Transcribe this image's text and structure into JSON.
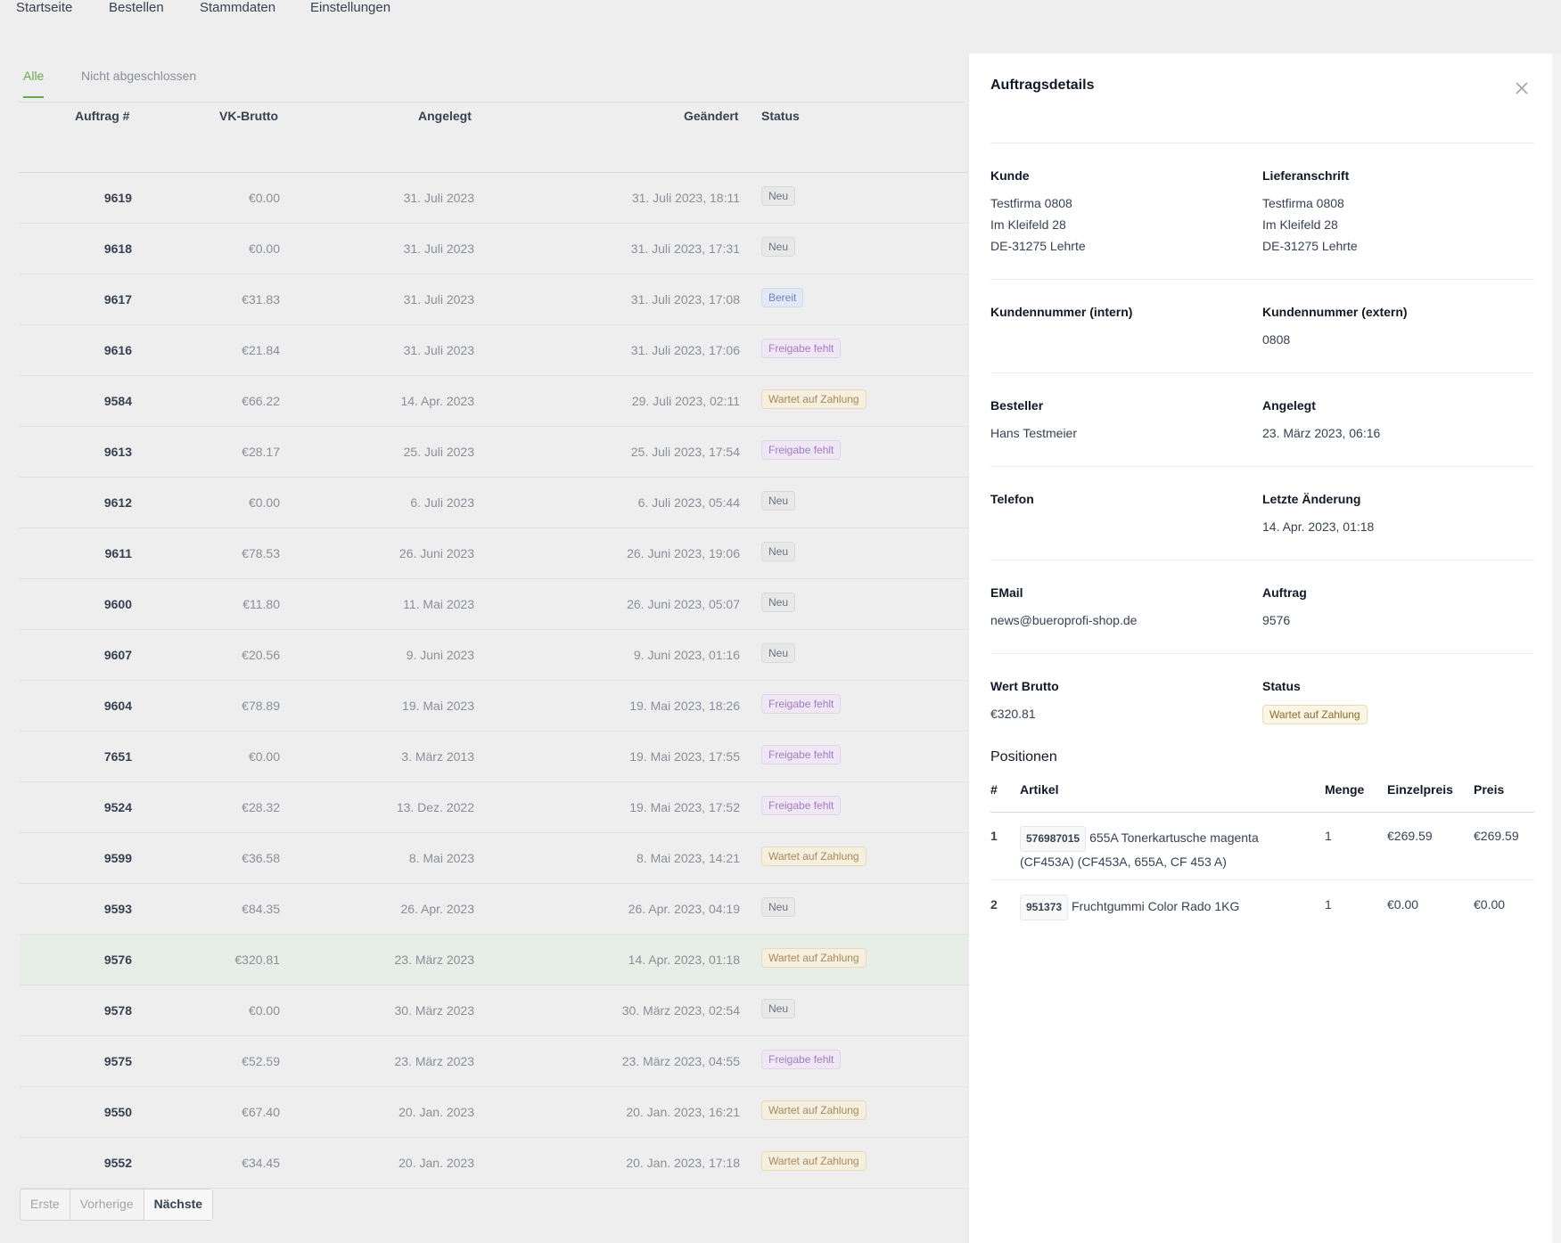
{
  "topnav": {
    "items": [
      "Startseite",
      "Bestellen",
      "Stammdaten",
      "Einstellungen"
    ]
  },
  "tabs": [
    {
      "label": "Alle",
      "active": true
    },
    {
      "label": "Nicht abgeschlossen",
      "active": false
    }
  ],
  "table": {
    "headers": {
      "id": "Auftrag #",
      "vk": "VK-Brutto",
      "created": "Angelegt",
      "changed": "Geändert",
      "status": "Status"
    },
    "rows": [
      {
        "id": "9619",
        "vk": "€0.00",
        "created": "31. Juli 2023",
        "changed": "31. Juli 2023, 18:11",
        "status": "Neu",
        "type": "neu"
      },
      {
        "id": "9618",
        "vk": "€0.00",
        "created": "31. Juli 2023",
        "changed": "31. Juli 2023, 17:31",
        "status": "Neu",
        "type": "neu"
      },
      {
        "id": "9617",
        "vk": "€31.83",
        "created": "31. Juli 2023",
        "changed": "31. Juli 2023, 17:08",
        "status": "Bereit",
        "type": "bereit"
      },
      {
        "id": "9616",
        "vk": "€21.84",
        "created": "31. Juli 2023",
        "changed": "31. Juli 2023, 17:06",
        "status": "Freigabe fehlt",
        "type": "freigabe"
      },
      {
        "id": "9584",
        "vk": "€66.22",
        "created": "14. Apr. 2023",
        "changed": "29. Juli 2023, 02:11",
        "status": "Wartet auf Zahlung",
        "type": "wartet"
      },
      {
        "id": "9613",
        "vk": "€28.17",
        "created": "25. Juli 2023",
        "changed": "25. Juli 2023, 17:54",
        "status": "Freigabe fehlt",
        "type": "freigabe"
      },
      {
        "id": "9612",
        "vk": "€0.00",
        "created": "6. Juli 2023",
        "changed": "6. Juli 2023, 05:44",
        "status": "Neu",
        "type": "neu"
      },
      {
        "id": "9611",
        "vk": "€78.53",
        "created": "26. Juni 2023",
        "changed": "26. Juni 2023, 19:06",
        "status": "Neu",
        "type": "neu"
      },
      {
        "id": "9600",
        "vk": "€11.80",
        "created": "11. Mai 2023",
        "changed": "26. Juni 2023, 05:07",
        "status": "Neu",
        "type": "neu"
      },
      {
        "id": "9607",
        "vk": "€20.56",
        "created": "9. Juni 2023",
        "changed": "9. Juni 2023, 01:16",
        "status": "Neu",
        "type": "neu"
      },
      {
        "id": "9604",
        "vk": "€78.89",
        "created": "19. Mai 2023",
        "changed": "19. Mai 2023, 18:26",
        "status": "Freigabe fehlt",
        "type": "freigabe"
      },
      {
        "id": "7651",
        "vk": "€0.00",
        "created": "3. März 2013",
        "changed": "19. Mai 2023, 17:55",
        "status": "Freigabe fehlt",
        "type": "freigabe"
      },
      {
        "id": "9524",
        "vk": "€28.32",
        "created": "13. Dez. 2022",
        "changed": "19. Mai 2023, 17:52",
        "status": "Freigabe fehlt",
        "type": "freigabe"
      },
      {
        "id": "9599",
        "vk": "€36.58",
        "created": "8. Mai 2023",
        "changed": "8. Mai 2023, 14:21",
        "status": "Wartet auf Zahlung",
        "type": "wartet"
      },
      {
        "id": "9593",
        "vk": "€84.35",
        "created": "26. Apr. 2023",
        "changed": "26. Apr. 2023, 04:19",
        "status": "Neu",
        "type": "neu"
      },
      {
        "id": "9576",
        "vk": "€320.81",
        "created": "23. März 2023",
        "changed": "14. Apr. 2023, 01:18",
        "status": "Wartet auf Zahlung",
        "type": "wartet",
        "selected": true
      },
      {
        "id": "9578",
        "vk": "€0.00",
        "created": "30. März 2023",
        "changed": "30. März 2023, 02:54",
        "status": "Neu",
        "type": "neu"
      },
      {
        "id": "9575",
        "vk": "€52.59",
        "created": "23. März 2023",
        "changed": "23. März 2023, 04:55",
        "status": "Freigabe fehlt",
        "type": "freigabe"
      },
      {
        "id": "9550",
        "vk": "€67.40",
        "created": "20. Jan. 2023",
        "changed": "20. Jan. 2023, 16:21",
        "status": "Wartet auf Zahlung",
        "type": "wartet"
      },
      {
        "id": "9552",
        "vk": "€34.45",
        "created": "20. Jan. 2023",
        "changed": "20. Jan. 2023, 17:18",
        "status": "Wartet auf Zahlung",
        "type": "wartet"
      }
    ]
  },
  "pagination": {
    "first": "Erste",
    "prev": "Vorherige",
    "next": "Nächste"
  },
  "panel": {
    "title": "Auftragsdetails",
    "kunde": {
      "label": "Kunde",
      "lines": [
        "Testfirma 0808",
        "Im Kleifeld 28",
        "DE-31275 Lehrte"
      ]
    },
    "lieferanschrift": {
      "label": "Lieferanschrift",
      "lines": [
        "Testfirma 0808",
        "Im Kleifeld 28",
        "DE-31275 Lehrte"
      ]
    },
    "kundennr_intern": {
      "label": "Kundennummer (intern)",
      "value": ""
    },
    "kundennr_extern": {
      "label": "Kundennummer (extern)",
      "value": "0808"
    },
    "besteller": {
      "label": "Besteller",
      "value": "Hans Testmeier"
    },
    "angelegt": {
      "label": "Angelegt",
      "value": "23. März 2023, 06:16"
    },
    "telefon": {
      "label": "Telefon",
      "value": ""
    },
    "letzte_aenderung": {
      "label": "Letzte Änderung",
      "value": "14. Apr. 2023, 01:18"
    },
    "email": {
      "label": "EMail",
      "value": "news@bueroprofi-shop.de"
    },
    "auftrag": {
      "label": "Auftrag",
      "value": "9576"
    },
    "wert_brutto": {
      "label": "Wert Brutto",
      "value": "€320.81"
    },
    "status": {
      "label": "Status",
      "value": "Wartet auf Zahlung"
    },
    "positionen": {
      "title": "Positionen",
      "headers": {
        "nr": "#",
        "artikel": "Artikel",
        "menge": "Menge",
        "einzelpreis": "Einzelpreis",
        "preis": "Preis"
      },
      "items": [
        {
          "nr": "1",
          "sku": "576987015",
          "name": "655A Tonerkartusche magenta",
          "name2": "(CF453A) (CF453A, 655A, CF 453 A)",
          "menge": "1",
          "einzelpreis": "€269.59",
          "preis": "€269.59"
        },
        {
          "nr": "2",
          "sku": "951373",
          "name": "Fruchtgummi Color Rado 1KG",
          "name2": "",
          "menge": "1",
          "einzelpreis": "€0.00",
          "preis": "€0.00"
        }
      ]
    }
  }
}
